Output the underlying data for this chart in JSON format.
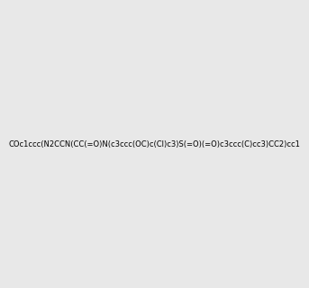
{
  "smiles": "COc1ccc(N2CCN(CC(=O)N(c3ccc(OC)c(Cl)c3)S(=O)(=O)c3ccc(C)cc3)CC2)cc1",
  "image_size": 300,
  "background_color": "#e8e8e8",
  "title": ""
}
